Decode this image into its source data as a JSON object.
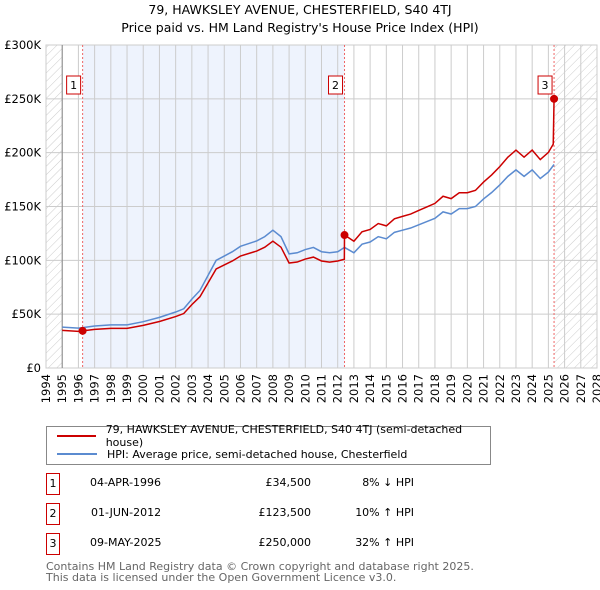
{
  "chart_data": {
    "type": "line",
    "title": "79, HAWKSLEY AVENUE, CHESTERFIELD, S40 4TJ",
    "subtitle": "Price paid vs. HM Land Registry's House Price Index (HPI)",
    "xlim": [
      1994,
      2028
    ],
    "ylim": [
      0,
      300000
    ],
    "x_ticks": [
      "1994",
      "1995",
      "1996",
      "1997",
      "1998",
      "1999",
      "2000",
      "2001",
      "2002",
      "2003",
      "2004",
      "2005",
      "2006",
      "2007",
      "2008",
      "2009",
      "2010",
      "2011",
      "2012",
      "2013",
      "2014",
      "2015",
      "2016",
      "2017",
      "2018",
      "2019",
      "2020",
      "2021",
      "2022",
      "2023",
      "2024",
      "2025",
      "2026",
      "2027",
      "2028"
    ],
    "y_ticks": [
      {
        "v": 0,
        "label": "£0"
      },
      {
        "v": 50000,
        "label": "£50K"
      },
      {
        "v": 100000,
        "label": "£100K"
      },
      {
        "v": 150000,
        "label": "£150K"
      },
      {
        "v": 200000,
        "label": "£200K"
      },
      {
        "v": 250000,
        "label": "£250K"
      },
      {
        "v": 300000,
        "label": "£300K"
      }
    ],
    "grid": true,
    "series": [
      {
        "name": "79, HAWKSLEY AVENUE, CHESTERFIELD, S40 4TJ (semi-detached house)",
        "color": "#cc0000",
        "x": [
          1995,
          1996,
          1996.26,
          1997,
          1998,
          1999,
          2000,
          2001,
          2002,
          2002.5,
          2003,
          2003.5,
          2004,
          2004.5,
          2005,
          2005.5,
          2006,
          2007,
          2007.5,
          2008,
          2008.5,
          2009,
          2009.5,
          2010,
          2010.5,
          2011,
          2011.5,
          2012,
          2012.41,
          2012.42,
          2013,
          2013.5,
          2014,
          2014.5,
          2015,
          2015.5,
          2016,
          2016.5,
          2017,
          2017.5,
          2018,
          2018.5,
          2019,
          2019.5,
          2020,
          2020.5,
          2021,
          2021.5,
          2022,
          2022.5,
          2023,
          2023.5,
          2024,
          2024.5,
          2025,
          2025.3,
          2025.35
        ],
        "y": [
          35000,
          34000,
          34500,
          35900,
          36800,
          36800,
          39600,
          43200,
          47800,
          50600,
          58900,
          66200,
          79100,
          92000,
          95700,
          99400,
          104000,
          108600,
          112200,
          117800,
          112200,
          97500,
          98400,
          101200,
          103000,
          99400,
          98400,
          99400,
          101000,
          123500,
          117700,
          126500,
          128700,
          134200,
          132000,
          138600,
          140800,
          143000,
          146300,
          149600,
          152900,
          159500,
          157300,
          162800,
          162800,
          165000,
          172700,
          179300,
          187000,
          195800,
          202400,
          195800,
          202400,
          193600,
          200200,
          207900,
          250000
        ]
      },
      {
        "name": "HPI: Average price, semi-detached house, Chesterfield",
        "color": "#5b8bd0",
        "x": [
          1995,
          1996,
          1996.26,
          1997,
          1998,
          1999,
          2000,
          2001,
          2002,
          2002.5,
          2003,
          2003.5,
          2004,
          2004.5,
          2005,
          2005.5,
          2006,
          2007,
          2007.5,
          2008,
          2008.5,
          2009,
          2009.5,
          2010,
          2010.5,
          2011,
          2011.5,
          2012,
          2012.42,
          2013,
          2013.5,
          2014,
          2014.5,
          2015,
          2015.5,
          2016,
          2016.5,
          2017,
          2017.5,
          2018,
          2018.5,
          2019,
          2019.5,
          2020,
          2020.5,
          2021,
          2021.5,
          2022,
          2022.5,
          2023,
          2023.5,
          2024,
          2024.5,
          2025,
          2025.35
        ],
        "y": [
          38000,
          37000,
          37500,
          39000,
          40000,
          40000,
          43000,
          47000,
          52000,
          55000,
          64000,
          72000,
          86000,
          100000,
          104000,
          108000,
          113000,
          118000,
          122000,
          128000,
          122000,
          106000,
          107000,
          110000,
          112000,
          108000,
          107000,
          108000,
          112000,
          107000,
          115000,
          117000,
          122000,
          120000,
          126000,
          128000,
          130000,
          133000,
          136000,
          139000,
          145000,
          143000,
          148000,
          148000,
          150000,
          157000,
          163000,
          170000,
          178000,
          184000,
          178000,
          184000,
          176000,
          182000,
          189000
        ]
      }
    ],
    "sales": [
      {
        "label": "1",
        "x": 1996.26,
        "y": 34500,
        "date": "04-APR-1996",
        "price": "£34,500",
        "hpi": "8% ↓ HPI"
      },
      {
        "label": "2",
        "x": 2012.42,
        "y": 123500,
        "date": "01-JUN-2012",
        "price": "£123,500",
        "hpi": "10% ↑ HPI"
      },
      {
        "label": "3",
        "x": 2025.35,
        "y": 250000,
        "date": "09-MAY-2025",
        "price": "£250,000",
        "hpi": "32% ↑ HPI"
      }
    ],
    "hatch_before": 1995,
    "hatch_after": 2025.35
  },
  "legend": {
    "red": "79, HAWKSLEY AVENUE, CHESTERFIELD, S40 4TJ (semi-detached house)",
    "blue": "HPI: Average price, semi-detached house, Chesterfield"
  },
  "footer": {
    "line1": "Contains HM Land Registry data © Crown copyright and database right 2025.",
    "line2": "This data is licensed under the Open Government Licence v3.0."
  }
}
